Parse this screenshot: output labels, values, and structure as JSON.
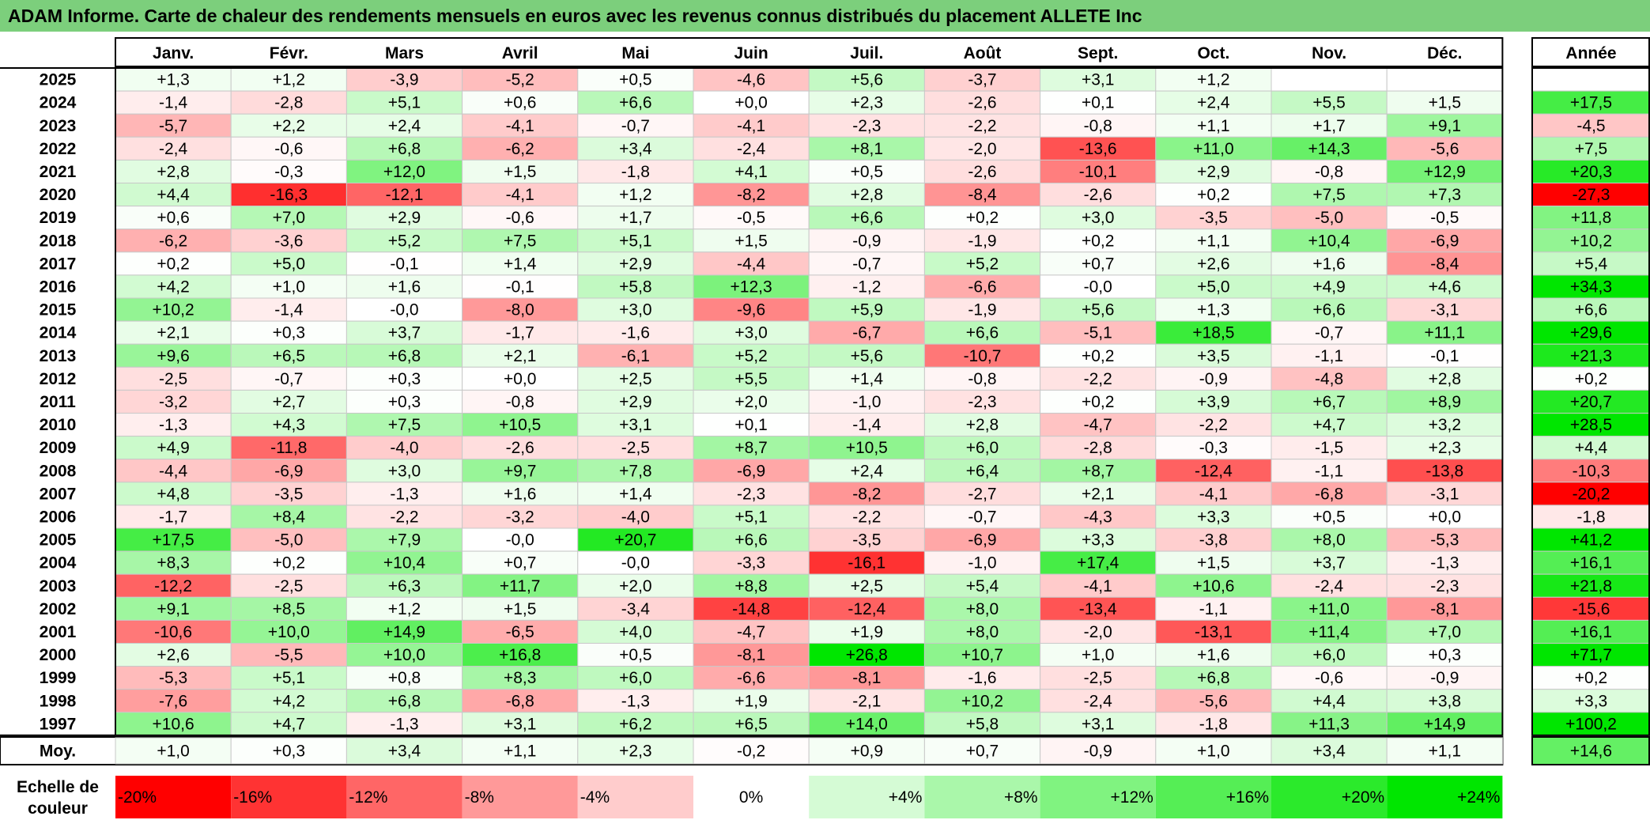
{
  "title": "ADAM Informe. Carte de chaleur des rendements mensuels en euros avec les revenus connus distribués du placement ALLETE Inc",
  "chart_data": {
    "type": "heatmap",
    "columns": [
      "Janv.",
      "Févr.",
      "Mars",
      "Avril",
      "Mai",
      "Juin",
      "Juil.",
      "Août",
      "Sept.",
      "Oct.",
      "Nov.",
      "Déc."
    ],
    "annual_label": "Année",
    "average_label": "Moy.",
    "rows": [
      {
        "year": "2025",
        "values": [
          1.3,
          1.2,
          -3.9,
          -5.2,
          0.5,
          -4.6,
          5.6,
          -3.7,
          3.1,
          1.2,
          null,
          null
        ],
        "annual": null
      },
      {
        "year": "2024",
        "values": [
          -1.4,
          -2.8,
          5.1,
          0.6,
          6.6,
          0.0,
          2.3,
          -2.6,
          0.1,
          2.4,
          5.5,
          1.5
        ],
        "annual": 17.5
      },
      {
        "year": "2023",
        "values": [
          -5.7,
          2.2,
          2.4,
          -4.1,
          -0.7,
          -4.1,
          -2.3,
          -2.2,
          -0.8,
          1.1,
          1.7,
          9.1
        ],
        "annual": -4.5
      },
      {
        "year": "2022",
        "values": [
          -2.4,
          -0.6,
          6.8,
          -6.2,
          3.4,
          -2.4,
          8.1,
          -2.0,
          -13.6,
          11.0,
          14.3,
          -5.6
        ],
        "annual": 7.5
      },
      {
        "year": "2021",
        "values": [
          2.8,
          -0.3,
          12.0,
          1.5,
          -1.8,
          4.1,
          0.5,
          -2.6,
          -10.1,
          2.9,
          -0.8,
          12.9
        ],
        "annual": 20.3
      },
      {
        "year": "2020",
        "values": [
          4.4,
          -16.3,
          -12.1,
          -4.1,
          1.2,
          -8.2,
          2.8,
          -8.4,
          -2.6,
          0.2,
          7.5,
          7.3
        ],
        "annual": -27.3
      },
      {
        "year": "2019",
        "values": [
          0.6,
          7.0,
          2.9,
          -0.6,
          1.7,
          -0.5,
          6.6,
          0.2,
          3.0,
          -3.5,
          -5.0,
          -0.5
        ],
        "annual": 11.8
      },
      {
        "year": "2018",
        "values": [
          -6.2,
          -3.6,
          5.2,
          7.5,
          5.1,
          1.5,
          -0.9,
          -1.9,
          0.2,
          1.1,
          10.4,
          -6.9
        ],
        "annual": 10.2
      },
      {
        "year": "2017",
        "values": [
          0.2,
          5.0,
          -0.1,
          1.4,
          2.9,
          -4.4,
          -0.7,
          5.2,
          0.7,
          2.6,
          1.6,
          -8.4
        ],
        "annual": 5.4
      },
      {
        "year": "2016",
        "values": [
          4.2,
          1.0,
          1.6,
          -0.1,
          5.8,
          12.3,
          -1.2,
          -6.6,
          "-0,0",
          5.0,
          4.9,
          4.6
        ],
        "annual": 34.3
      },
      {
        "year": "2015",
        "values": [
          10.2,
          -1.4,
          "-0,0",
          -8.0,
          3.0,
          -9.6,
          5.9,
          -1.9,
          5.6,
          1.3,
          6.6,
          -3.1
        ],
        "annual": 6.6
      },
      {
        "year": "2014",
        "values": [
          2.1,
          0.3,
          3.7,
          -1.7,
          -1.6,
          3.0,
          -6.7,
          6.6,
          -5.1,
          18.5,
          -0.7,
          11.1
        ],
        "annual": 29.6
      },
      {
        "year": "2013",
        "values": [
          9.6,
          6.5,
          6.8,
          2.1,
          -6.1,
          5.2,
          5.6,
          -10.7,
          0.2,
          3.5,
          -1.1,
          -0.1
        ],
        "annual": 21.3
      },
      {
        "year": "2012",
        "values": [
          -2.5,
          -0.7,
          0.3,
          0.0,
          2.5,
          5.5,
          1.4,
          -0.8,
          -2.2,
          -0.9,
          -4.8,
          2.8
        ],
        "annual": 0.2
      },
      {
        "year": "2011",
        "values": [
          -3.2,
          2.7,
          0.3,
          -0.8,
          2.9,
          2.0,
          -1.0,
          -2.3,
          0.2,
          3.9,
          6.7,
          8.9
        ],
        "annual": 20.7
      },
      {
        "year": "2010",
        "values": [
          -1.3,
          4.3,
          7.5,
          10.5,
          3.1,
          0.1,
          -1.4,
          2.8,
          -4.7,
          -2.2,
          4.7,
          3.2
        ],
        "annual": 28.5
      },
      {
        "year": "2009",
        "values": [
          4.9,
          -11.8,
          -4.0,
          -2.6,
          -2.5,
          8.7,
          10.5,
          6.0,
          -2.8,
          -0.3,
          -1.5,
          2.3
        ],
        "annual": 4.4
      },
      {
        "year": "2008",
        "values": [
          -4.4,
          -6.9,
          3.0,
          9.7,
          7.8,
          -6.9,
          2.4,
          6.4,
          8.7,
          -12.4,
          -1.1,
          -13.8
        ],
        "annual": -10.3
      },
      {
        "year": "2007",
        "values": [
          4.8,
          -3.5,
          -1.3,
          1.6,
          1.4,
          -2.3,
          -8.2,
          -2.7,
          2.1,
          -4.1,
          -6.8,
          -3.1
        ],
        "annual": -20.2
      },
      {
        "year": "2006",
        "values": [
          -1.7,
          8.4,
          -2.2,
          -3.2,
          -4.0,
          5.1,
          -2.2,
          -0.7,
          -4.3,
          3.3,
          0.5,
          0.0
        ],
        "annual": -1.8
      },
      {
        "year": "2005",
        "values": [
          17.5,
          -5.0,
          7.9,
          "-0,0",
          20.7,
          6.6,
          -3.5,
          -6.9,
          3.3,
          -3.8,
          8.0,
          -5.3
        ],
        "annual": 41.2
      },
      {
        "year": "2004",
        "values": [
          8.3,
          0.2,
          10.4,
          0.7,
          "-0,0",
          -3.3,
          -16.1,
          -1.0,
          17.4,
          1.5,
          3.7,
          -1.3
        ],
        "annual": 16.1
      },
      {
        "year": "2003",
        "values": [
          -12.2,
          -2.5,
          6.3,
          11.7,
          2.0,
          8.8,
          2.5,
          5.4,
          -4.1,
          10.6,
          -2.4,
          -2.3
        ],
        "annual": 21.8
      },
      {
        "year": "2002",
        "values": [
          9.1,
          8.5,
          1.2,
          1.5,
          -3.4,
          -14.8,
          -12.4,
          8.0,
          -13.4,
          -1.1,
          11.0,
          -8.1
        ],
        "annual": -15.6
      },
      {
        "year": "2001",
        "values": [
          -10.6,
          10.0,
          14.9,
          -6.5,
          4.0,
          -4.7,
          1.9,
          8.0,
          -2.0,
          -13.1,
          11.4,
          7.0
        ],
        "annual": 16.1
      },
      {
        "year": "2000",
        "values": [
          2.6,
          -5.5,
          10.0,
          16.8,
          0.5,
          -8.1,
          26.8,
          10.7,
          1.0,
          1.6,
          6.0,
          0.3
        ],
        "annual": 71.7
      },
      {
        "year": "1999",
        "values": [
          -5.3,
          5.1,
          0.8,
          8.3,
          6.0,
          -6.6,
          -8.1,
          -1.6,
          -2.5,
          6.8,
          -0.6,
          -0.9
        ],
        "annual": 0.2
      },
      {
        "year": "1998",
        "values": [
          -7.6,
          4.2,
          6.8,
          -6.8,
          -1.3,
          1.9,
          -2.1,
          10.2,
          -2.4,
          -5.6,
          4.4,
          3.8
        ],
        "annual": 3.3
      },
      {
        "year": "1997",
        "values": [
          10.6,
          4.7,
          -1.3,
          3.1,
          6.2,
          6.5,
          14.0,
          5.8,
          3.1,
          -1.8,
          11.3,
          14.9
        ],
        "annual": 100.2
      }
    ],
    "averages": {
      "values": [
        1.0,
        0.3,
        3.4,
        1.1,
        2.3,
        -0.2,
        0.9,
        0.7,
        -0.9,
        1.0,
        3.4,
        1.1
      ],
      "annual": 14.6
    },
    "scale": {
      "label_line1": "Echelle de",
      "label_line2": "couleur",
      "stops": [
        "-20%",
        "-16%",
        "-12%",
        "-8%",
        "-4%",
        "0%",
        "+4%",
        "+8%",
        "+12%",
        "+16%",
        "+20%",
        "+24%"
      ],
      "stop_values": [
        -20,
        -16,
        -12,
        -8,
        -4,
        0,
        4,
        8,
        12,
        16,
        20,
        24
      ]
    },
    "colors": {
      "negative_max": "#ff0000",
      "zero": "#ffffff",
      "positive_max": "#00e600",
      "title_bar": "#7ccf7c"
    }
  }
}
